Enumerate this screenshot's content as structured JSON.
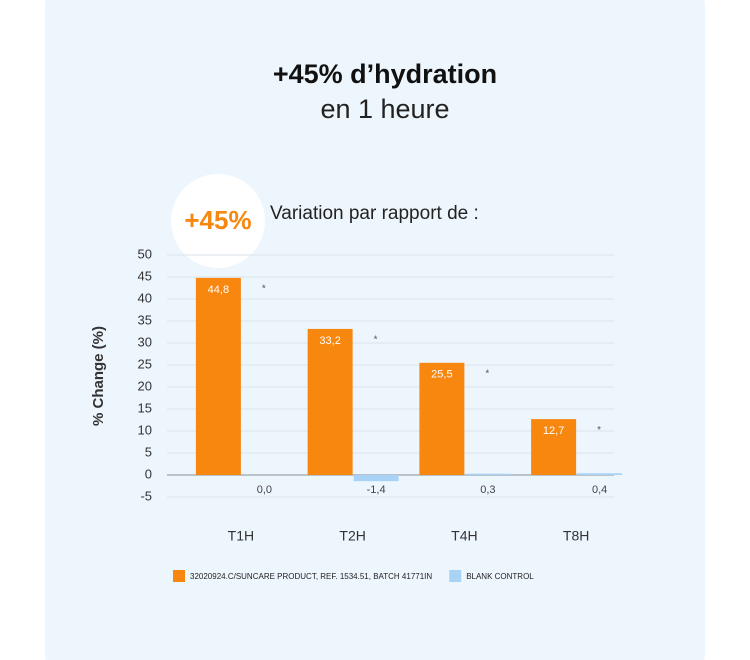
{
  "chart_data": {
    "type": "bar",
    "title": "+45% d’hydration",
    "subtitle": "en 1 heure",
    "badge": "+45%",
    "caption": "Variation par rapport de :",
    "y_label": "% Change (%)",
    "categories": [
      "T1H",
      "T2H",
      "T4H",
      "T8H"
    ],
    "series": [
      {
        "name": "32020924.C/SUNCARE PRODUCT, REF. 1534.51, BATCH 41771IN",
        "color": "#f7870f",
        "values": [
          44.8,
          33.2,
          25.5,
          12.7
        ],
        "value_labels": [
          "44,8",
          "33,2",
          "25,5",
          "12,7"
        ]
      },
      {
        "name": "BLANK CONTROL",
        "color": "#a9d3f6",
        "values": [
          0.0,
          -1.4,
          0.3,
          0.4
        ],
        "value_labels": [
          "0,0",
          "-1,4",
          "0,3",
          "0,4"
        ]
      }
    ],
    "annotations": [
      "*",
      "*",
      "*",
      "*"
    ],
    "ylim": [
      -5,
      50
    ],
    "yticks": [
      -5,
      0,
      5,
      10,
      15,
      20,
      25,
      30,
      35,
      40,
      45,
      50
    ],
    "grid": true
  }
}
